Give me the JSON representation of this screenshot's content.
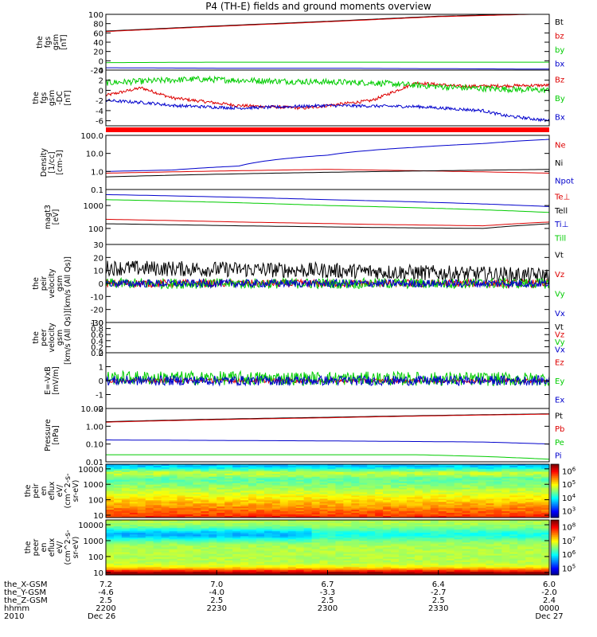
{
  "title": "P4 (TH-E) fields and ground moments overview",
  "chart_data": {
    "type": "line",
    "title": "P4 (TH-E) fields and ground moments overview",
    "x_range": [
      "2010-12-26 22:00",
      "2010-12-27 00:00"
    ],
    "panels": [
      {
        "id": "fgs",
        "ylabel": [
          "the",
          "fgs",
          "gsm",
          "[nT]"
        ],
        "ylim": [
          -20,
          100
        ],
        "yscale": "linear",
        "ticks": [
          -20,
          0,
          20,
          40,
          60,
          80,
          100
        ],
        "tick_labels": [
          "-20",
          "0",
          "20",
          "40",
          "60",
          "80",
          "100"
        ],
        "series": [
          {
            "name": "Bt",
            "color": "#000000",
            "x": [
              0,
              0.25,
              0.5,
              0.75,
              1.0
            ],
            "y": [
              64,
              75,
              85,
              96,
              102
            ]
          },
          {
            "name": "bz",
            "color": "#dd0000",
            "x": [
              0,
              0.25,
              0.5,
              0.75,
              1.0
            ],
            "y": [
              63,
              74,
              84,
              95,
              101
            ]
          },
          {
            "name": "by",
            "color": "#00cc00",
            "x": [
              0,
              0.25,
              0.5,
              0.75,
              1.0
            ],
            "y": [
              -4,
              -3,
              -3,
              -3,
              -3
            ]
          },
          {
            "name": "bx",
            "color": "#0000cc",
            "x": [
              0,
              0.25,
              0.5,
              0.75,
              1.0
            ],
            "y": [
              -15,
              -16,
              -16,
              -17,
              -18
            ]
          }
        ]
      },
      {
        "id": "fgs_dt",
        "ylabel": [
          "the",
          "fgs",
          "gsm",
          "-DC",
          "[nT]"
        ],
        "ylim": [
          -7,
          4
        ],
        "yscale": "linear",
        "ticks": [
          -6,
          -4,
          -2,
          0,
          2,
          4
        ],
        "tick_labels": [
          "-6",
          "-4",
          "-2",
          "0",
          "2",
          "4"
        ],
        "series": [
          {
            "name": "Bz",
            "color": "#dd0000",
            "noise": 0.3,
            "x": [
              0,
              0.08,
              0.15,
              0.3,
              0.45,
              0.6,
              0.7,
              0.8,
              1.0
            ],
            "y": [
              -1,
              0.5,
              -1.5,
              -3,
              -3.5,
              -2,
              1.5,
              0.8,
              1
            ]
          },
          {
            "name": "By",
            "color": "#00cc00",
            "noise": 0.6,
            "x": [
              0,
              0.2,
              0.4,
              0.6,
              0.8,
              1.0
            ],
            "y": [
              1.5,
              2.2,
              1.8,
              1.5,
              0.5,
              0
            ]
          },
          {
            "name": "Bx",
            "color": "#0000cc",
            "noise": 0.3,
            "x": [
              0,
              0.1,
              0.15,
              0.3,
              0.5,
              0.7,
              0.85,
              0.9,
              1.0
            ],
            "y": [
              -2,
              -2.5,
              -3,
              -3.5,
              -3,
              -3.2,
              -4,
              -5,
              -6
            ]
          }
        ]
      },
      {
        "id": "density",
        "ylabel": [
          "Density",
          "[1/cc]",
          "[cm-3]"
        ],
        "ylim": [
          0.1,
          100
        ],
        "yscale": "log",
        "ticks": [
          0.1,
          1,
          10,
          100
        ],
        "tick_labels": [
          "0.1",
          "1.0",
          "10.0",
          "100.0"
        ],
        "series": [
          {
            "name": "Ne",
            "color": "#dd0000",
            "x": [
              0,
              0.5,
              1.0
            ],
            "y": [
              0.8,
              1.3,
              0.8
            ]
          },
          {
            "name": "Ni",
            "color": "#000000",
            "x": [
              0,
              0.5,
              1.0
            ],
            "y": [
              0.5,
              0.9,
              1.3
            ]
          },
          {
            "name": "Npot",
            "color": "#0000cc",
            "x": [
              0,
              0.15,
              0.3,
              0.5,
              0.7,
              0.85,
              1.0
            ],
            "y": [
              1.0,
              1.2,
              2.0,
              8,
              22,
              35,
              60
            ]
          }
        ]
      },
      {
        "id": "temp",
        "ylabel": [
          "magt3",
          "[eV]"
        ],
        "ylim": [
          20,
          5000
        ],
        "yscale": "log",
        "ticks": [
          100,
          1000
        ],
        "tick_labels": [
          "100",
          "1000"
        ],
        "series": [
          {
            "name": "Te⊥",
            "color": "#dd0000",
            "x": [
              0,
              0.3,
              0.6,
              0.85,
              1.0
            ],
            "y": [
              250,
              190,
              150,
              130,
              190
            ]
          },
          {
            "name": "Tell",
            "color": "#000000",
            "x": [
              0,
              0.3,
              0.6,
              0.85,
              1.0
            ],
            "y": [
              160,
              130,
              110,
              100,
              160
            ]
          },
          {
            "name": "Ti⊥",
            "color": "#0000cc",
            "x": [
              0,
              0.5,
              1.0
            ],
            "y": [
              3000,
              1800,
              900
            ]
          },
          {
            "name": "Till",
            "color": "#00cc00",
            "x": [
              0,
              0.5,
              1.0
            ],
            "y": [
              1800,
              1000,
              500
            ]
          }
        ]
      },
      {
        "id": "peir_v",
        "ylabel": [
          "the",
          "peir",
          "velocity",
          "gsm",
          "[km/s (All Qs)]"
        ],
        "ylim": [
          -30,
          30
        ],
        "yscale": "linear",
        "ticks": [
          -30,
          -20,
          -10,
          0,
          10,
          20,
          30
        ],
        "tick_labels": [
          "-30",
          "-20",
          "-10",
          "0",
          "10",
          "20",
          "30"
        ],
        "series": [
          {
            "name": "Vt",
            "color": "#000000",
            "noise": 6,
            "x": [
              0,
              0.5,
              1.0
            ],
            "y": [
              12,
              10,
              6
            ]
          },
          {
            "name": "Vz",
            "color": "#dd0000",
            "noise": 3,
            "x": [
              0,
              1.0
            ],
            "y": [
              0,
              0
            ]
          },
          {
            "name": "Vy",
            "color": "#00cc00",
            "noise": 4,
            "x": [
              0,
              1.0
            ],
            "y": [
              0,
              0
            ]
          },
          {
            "name": "Vx",
            "color": "#0000cc",
            "noise": 3,
            "x": [
              0,
              1.0
            ],
            "y": [
              0,
              0
            ]
          }
        ]
      },
      {
        "id": "peer_v",
        "ylabel": [
          "the",
          "peer",
          "velocity",
          "gsm",
          "[km/s (All Qs)]"
        ],
        "ylim": [
          0,
          1
        ],
        "yscale": "linear",
        "ticks": [
          0,
          0.2,
          0.4,
          0.6,
          0.8,
          1
        ],
        "tick_labels": [
          "0.0",
          "0.2",
          "0.4",
          "0.6",
          "0.8",
          "1.0"
        ],
        "series": [
          {
            "name": "Vt",
            "color": "#000000"
          },
          {
            "name": "Vz",
            "color": "#dd0000"
          },
          {
            "name": "Vy",
            "color": "#00cc00"
          },
          {
            "name": "Vx",
            "color": "#0000cc"
          }
        ]
      },
      {
        "id": "efield",
        "ylabel": [
          "E=-VxB",
          "[mV/m]"
        ],
        "ylim": [
          -2,
          2
        ],
        "yscale": "linear",
        "ticks": [
          -2,
          -1,
          0,
          1,
          2
        ],
        "tick_labels": [
          "-2",
          "-1",
          "0",
          "1",
          "2"
        ],
        "series": [
          {
            "name": "Ez",
            "color": "#dd0000",
            "noise": 0.15,
            "x": [
              0,
              1.0
            ],
            "y": [
              0,
              0
            ]
          },
          {
            "name": "Ey",
            "color": "#00cc00",
            "noise": 0.5,
            "x": [
              0,
              1.0
            ],
            "y": [
              0.2,
              0.1
            ]
          },
          {
            "name": "Ex",
            "color": "#0000cc",
            "noise": 0.35,
            "x": [
              0,
              1.0
            ],
            "y": [
              0,
              0
            ]
          }
        ]
      },
      {
        "id": "pressure",
        "ylabel": [
          "Pressure",
          "[nPa]"
        ],
        "ylim": [
          0.01,
          10
        ],
        "yscale": "log",
        "ticks": [
          0.01,
          0.1,
          1,
          10
        ],
        "tick_labels": [
          "0.01",
          "0.10",
          "1.00",
          "10.00"
        ],
        "series": [
          {
            "name": "Pt",
            "color": "#000000",
            "x": [
              0,
              0.5,
              1.0
            ],
            "y": [
              1.8,
              3.2,
              5.0
            ]
          },
          {
            "name": "Pb",
            "color": "#dd0000",
            "x": [
              0,
              0.5,
              1.0
            ],
            "y": [
              1.7,
              3.0,
              4.8
            ]
          },
          {
            "name": "Pe",
            "color": "#00cc00",
            "x": [
              0,
              0.7,
              0.85,
              1.0
            ],
            "y": [
              0.025,
              0.025,
              0.02,
              0.014
            ]
          },
          {
            "name": "Pi",
            "color": "#0000cc",
            "x": [
              0,
              0.5,
              0.85,
              1.0
            ],
            "y": [
              0.17,
              0.15,
              0.13,
              0.1
            ]
          }
        ]
      },
      {
        "id": "peir_spec",
        "type": "spectrogram",
        "ylabel": [
          "the",
          "peir",
          "en",
          "eflux",
          "eV/",
          "(cm^2-s-",
          "sr-eV)"
        ],
        "ylim": [
          7,
          20000
        ],
        "yscale": "log",
        "ticks": [
          10,
          100,
          1000,
          10000
        ],
        "tick_labels": [
          "10",
          "100",
          "1000",
          "10000"
        ],
        "colorbar": {
          "ticks": [
            "10^3",
            "10^4",
            "10^5",
            "10^6"
          ]
        }
      },
      {
        "id": "peer_spec",
        "type": "spectrogram",
        "ylabel": [
          "the",
          "peer",
          "en",
          "eflux",
          "eV/",
          "(cm^2-s-",
          "sr-eV)"
        ],
        "ylim": [
          7,
          20000
        ],
        "yscale": "log",
        "ticks": [
          10,
          100,
          1000,
          10000
        ],
        "tick_labels": [
          "10",
          "100",
          "1000",
          "10000"
        ],
        "colorbar": {
          "ticks": [
            "10^5",
            "10^6",
            "10^7",
            "10^8"
          ]
        }
      }
    ],
    "x_labels": {
      "rows": [
        {
          "name": "the_X-GSM",
          "values": [
            "7.2",
            "7.0",
            "6.7",
            "6.4",
            "6.0"
          ]
        },
        {
          "name": "the_Y-GSM",
          "values": [
            "-4.6",
            "-4.0",
            "-3.3",
            "-2.7",
            "-2.0"
          ]
        },
        {
          "name": "the_Z-GSM",
          "values": [
            "2.5",
            "2.5",
            "2.5",
            "2.5",
            "2.4"
          ]
        },
        {
          "name": "hhmm",
          "values": [
            "2200",
            "2230",
            "2300",
            "2330",
            "0000"
          ]
        },
        {
          "name": "2010",
          "values": [
            "Dec 26",
            "",
            "",
            "",
            "Dec 27"
          ]
        }
      ]
    }
  }
}
